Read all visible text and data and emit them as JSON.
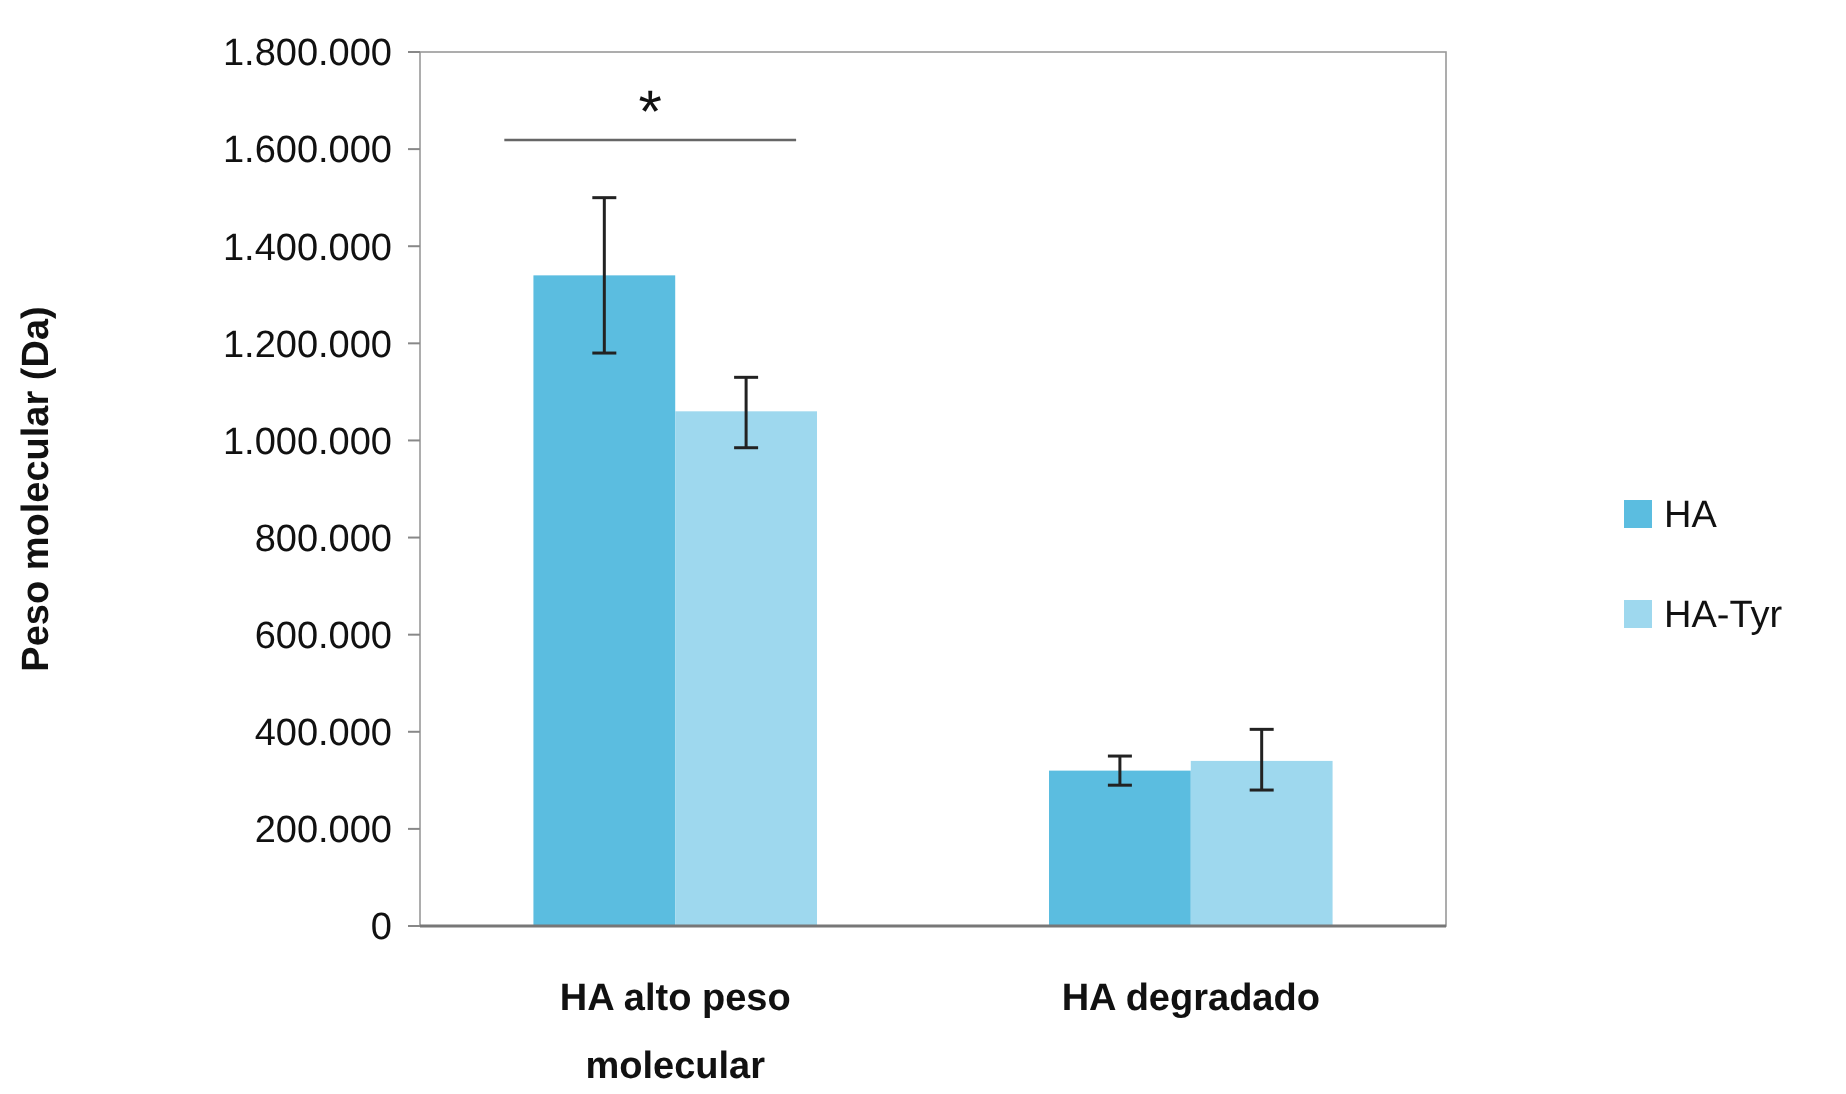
{
  "chart_data": {
    "type": "bar",
    "ylabel": "Peso molecular (Da)",
    "categories": [
      "HA alto peso molecular",
      "HA degradado"
    ],
    "series": [
      {
        "name": "HA",
        "color": "#5bbde0",
        "values": [
          1340000,
          320000
        ],
        "errors": [
          [
            1180000,
            1500000
          ],
          [
            290000,
            350000
          ]
        ]
      },
      {
        "name": "HA-Tyr",
        "color": "#9ed8ee",
        "values": [
          1060000,
          340000
        ],
        "errors": [
          [
            985000,
            1130000
          ],
          [
            280000,
            405000
          ]
        ]
      }
    ],
    "ylim": [
      0,
      1800000
    ],
    "yticks": [
      {
        "value": 0,
        "label": "0"
      },
      {
        "value": 200000,
        "label": "200.000"
      },
      {
        "value": 400000,
        "label": "400.000"
      },
      {
        "value": 600000,
        "label": "600.000"
      },
      {
        "value": 800000,
        "label": "800.000"
      },
      {
        "value": 1000000,
        "label": "1.000.000"
      },
      {
        "value": 1200000,
        "label": "1.200.000"
      },
      {
        "value": 1400000,
        "label": "1.400.000"
      },
      {
        "value": 1600000,
        "label": "1.600.000"
      },
      {
        "value": 1800000,
        "label": "1.800.000"
      }
    ],
    "annotations": [
      "*"
    ],
    "legend": "right",
    "grid": false
  }
}
